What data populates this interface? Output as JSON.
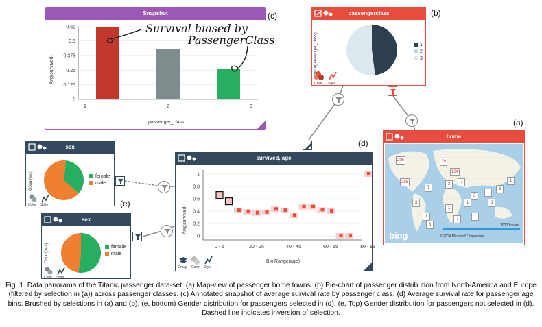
{
  "figure": {
    "caption": "Fig. 1. Data panorama of the Titanic passenger data-set. (a) Map-view of passenger home towns. (b) Pie-chart of passenger distribution from North-America and Europe (filtered by selection in (a)) across passenger classes. (c) Annotated snapshot of average survival rate by passenger class. (d) Average survival rate for passenger age bins. Brushed by selections in (a) and (b). (e, bottom) Gender distribution for passengers selected in (d). (e, Top) Gender distribution for passengers not selected in (d). Dashed line indicates inversion of selection.",
    "letters": {
      "a": "(a)",
      "b": "(b)",
      "c": "(c)",
      "d": "(d)",
      "e": "(e)"
    }
  },
  "snapshot": {
    "title": "Snapshot",
    "annotation_line1": "Survival biased by",
    "annotation_line2": "PassengerClass",
    "accent": "#9b59b6",
    "chart_data": {
      "type": "bar",
      "categories": [
        "1",
        "2",
        "3"
      ],
      "values": [
        0.62,
        0.43,
        0.26
      ],
      "xlabel": "passenger_class",
      "ylabel": "Avg(survived)",
      "yticks": [
        "0",
        "0.125",
        "0.25",
        "0.375",
        "0.5",
        "0.62"
      ],
      "ylim": [
        0,
        0.62
      ],
      "colors": [
        "#c0392b",
        "#7f8c8d",
        "#27ae60"
      ]
    }
  },
  "passengerclass": {
    "title": "passengerclass",
    "ylabel": "count(passenger_class)",
    "legend": [
      "1",
      "2",
      "3"
    ],
    "btn_color": "Color",
    "btn_style": "Style",
    "chart_data": {
      "type": "pie",
      "labels": [
        "1",
        "2",
        "3"
      ],
      "values": [
        48,
        0,
        52
      ],
      "colors": [
        "#2c3e50",
        "#bdd7e7",
        "#dde8ee"
      ]
    }
  },
  "home": {
    "title": "home",
    "scale": "10000 miles",
    "copyright": "© 2014 Microsoft Corporation",
    "bing": "bing",
    "markers": [
      "295",
      "134",
      "39",
      "295",
      "3",
      "7",
      "7",
      "1",
      "1",
      "3",
      "3",
      "1",
      "3",
      "3",
      "1",
      "7",
      "1",
      "1",
      "3"
    ]
  },
  "survived_age": {
    "title": "survived, age",
    "btn_group": "Group",
    "btn_color": "Color",
    "btn_style": "Style",
    "chart_data": {
      "type": "scatter",
      "xlabel": "Bin Range(age)",
      "ylabel": "Avg(survived)",
      "xticks": [
        "0 - 5",
        "20 - 25",
        "40 - 45",
        "60 - 65",
        "80 - 85"
      ],
      "yticks": [
        "0",
        "0.2",
        "0.4",
        "0.6",
        "0.8",
        "1"
      ],
      "ylim": [
        0,
        1
      ],
      "points": [
        {
          "bin": 0,
          "y": 0.66,
          "state": "selected"
        },
        {
          "bin": 1,
          "y": 0.56,
          "state": "selected"
        },
        {
          "bin": 2,
          "y": 0.41,
          "state": "context"
        },
        {
          "bin": 3,
          "y": 0.39,
          "state": "context"
        },
        {
          "bin": 4,
          "y": 0.37,
          "state": "context"
        },
        {
          "bin": 5,
          "y": 0.38,
          "state": "context"
        },
        {
          "bin": 6,
          "y": 0.43,
          "state": "context"
        },
        {
          "bin": 7,
          "y": 0.41,
          "state": "context"
        },
        {
          "bin": 8,
          "y": 0.33,
          "state": "context"
        },
        {
          "bin": 9,
          "y": 0.47,
          "state": "context"
        },
        {
          "bin": 10,
          "y": 0.47,
          "state": "context"
        },
        {
          "bin": 11,
          "y": 0.42,
          "state": "context"
        },
        {
          "bin": 12,
          "y": 0.4,
          "state": "context"
        },
        {
          "bin": 13,
          "y": 0.0,
          "state": "context"
        },
        {
          "bin": 14,
          "y": 0.0,
          "state": "context"
        },
        {
          "bin": 16,
          "y": 1.0,
          "state": "context"
        }
      ],
      "nbins": 17
    }
  },
  "sex_top": {
    "title": "sex",
    "ylabel": "Count(sex)",
    "legend": [
      "female",
      "male"
    ],
    "btn_color": "Color",
    "btn_style": "Style",
    "chart_data": {
      "type": "pie",
      "labels": [
        "female",
        "male"
      ],
      "values": [
        35,
        65
      ],
      "colors": [
        "#27ae60",
        "#f08030"
      ]
    }
  },
  "sex_bottom": {
    "title": "sex",
    "ylabel": "Count(sex)",
    "legend": [
      "female",
      "male"
    ],
    "btn_color": "Color",
    "btn_style": "Style",
    "chart_data": {
      "type": "pie",
      "labels": [
        "female",
        "male"
      ],
      "values": [
        52,
        48
      ],
      "colors": [
        "#27ae60",
        "#f08030"
      ]
    }
  }
}
